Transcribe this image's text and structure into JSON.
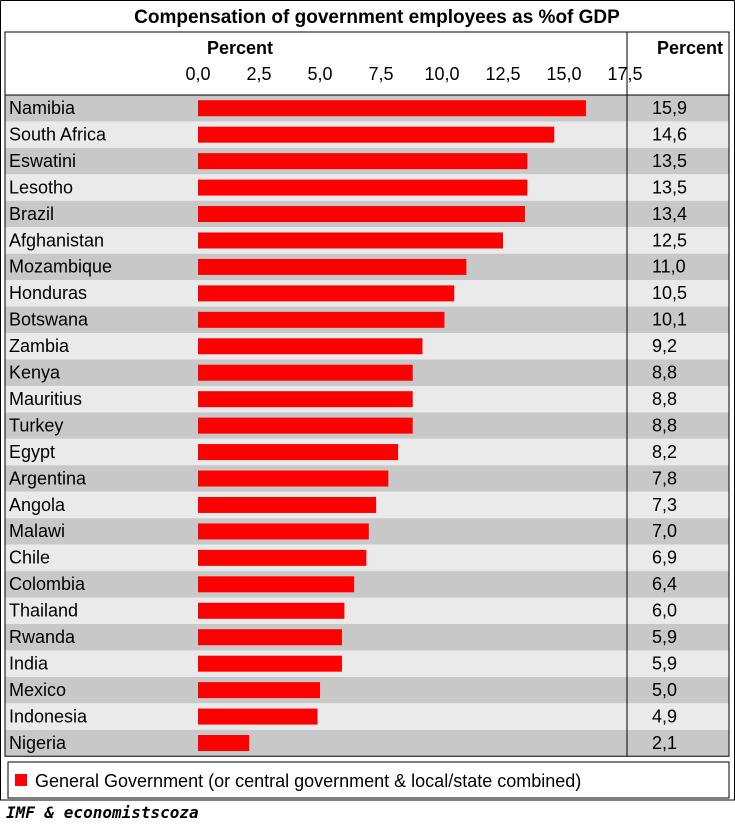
{
  "chart_data": {
    "type": "bar",
    "orientation": "horizontal",
    "title": "Compensation of government employees as %of GDP",
    "xlabel": "Percent",
    "value_column_label": "Percent",
    "xlim": [
      0,
      17.5
    ],
    "ticks": [
      "0,0",
      "2,5",
      "5,0",
      "7,5",
      "10,0",
      "12,5",
      "15,0",
      "17,5"
    ],
    "categories": [
      "Namibia",
      "South Africa",
      "Eswatini",
      "Lesotho",
      "Brazil",
      "Afghanistan",
      "Mozambique",
      "Honduras",
      "Botswana",
      "Zambia",
      "Kenya",
      "Mauritius",
      "Turkey",
      "Egypt",
      "Argentina",
      "Angola",
      "Malawi",
      "Chile",
      "Colombia",
      "Thailand",
      "Rwanda",
      "India",
      "Mexico",
      "Indonesia",
      "Nigeria"
    ],
    "values": [
      15.9,
      14.6,
      13.5,
      13.5,
      13.4,
      12.5,
      11.0,
      10.5,
      10.1,
      9.2,
      8.8,
      8.8,
      8.8,
      8.2,
      7.8,
      7.3,
      7.0,
      6.9,
      6.4,
      6.0,
      5.9,
      5.9,
      5.0,
      4.9,
      2.1
    ],
    "value_labels": [
      "15,9",
      "14,6",
      "13,5",
      "13,5",
      "13,4",
      "12,5",
      "11,0",
      "10,5",
      "10,1",
      "9,2",
      "8,8",
      "8,8",
      "8,8",
      "8,2",
      "7,8",
      "7,3",
      "7,0",
      "6,9",
      "6,4",
      "6,0",
      "5,9",
      "5,9",
      "5,0",
      "4,9",
      "2,1"
    ],
    "series": [
      {
        "name": "General Government (or central government & local/state combined)",
        "color": "#ff0000"
      }
    ],
    "legend_position": "bottom",
    "row_colors": [
      "#c8c8c8",
      "#eaeaea"
    ],
    "grid": false
  },
  "source": "IMF & economistscoza"
}
